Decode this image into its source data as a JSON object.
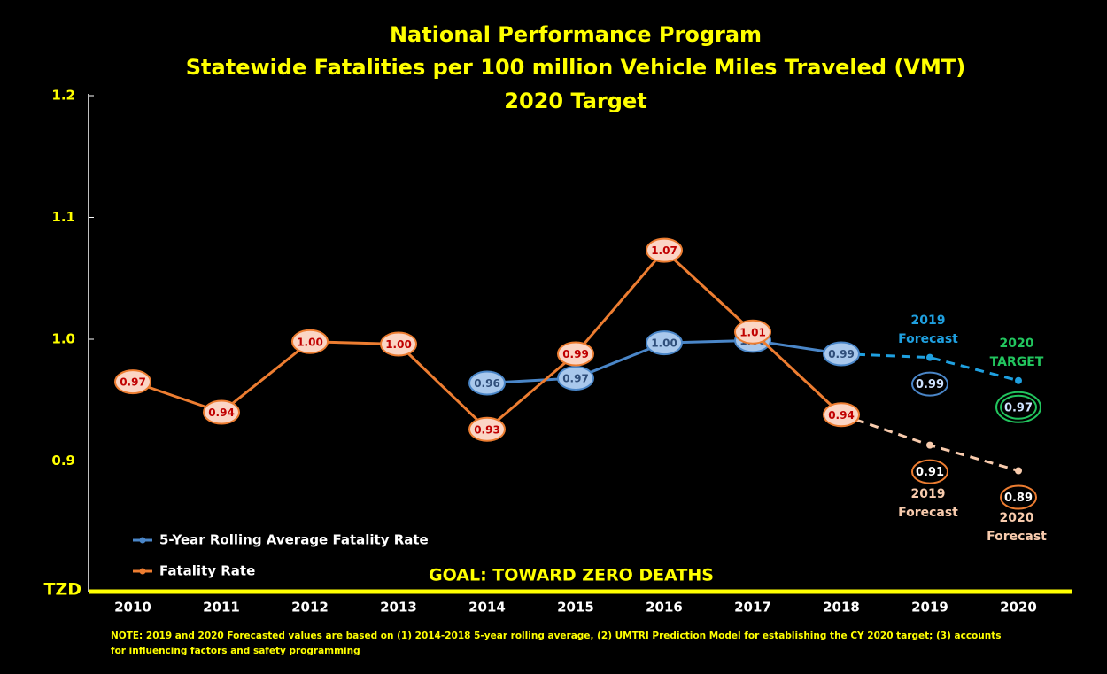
{
  "chart_data": {
    "type": "line",
    "title": [
      "National Performance Program",
      "Statewide Fatalities per 100 million Vehicle Miles Traveled (VMT)",
      "2020 Target"
    ],
    "categories": [
      "2010",
      "2011",
      "2012",
      "2013",
      "2014",
      "2015",
      "2016",
      "2017",
      "2018",
      "2019",
      "2020"
    ],
    "ylim": [
      0.8,
      1.2
    ],
    "yticks": [
      {
        "value": 0.8,
        "label": "TZD"
      },
      0.9,
      {
        "value": 1,
        "label": "1.0"
      },
      1.1,
      1.2
    ],
    "forecast_from": 8,
    "series": [
      {
        "name": "5-Year Rolling Average Fatality Rate",
        "color": "#4a86c8",
        "forecast_color": "#1fa0e0",
        "label_fill": "#a9c8ec",
        "label_text": "#2f4e7a",
        "target_color": "#22c55e",
        "values": [
          null,
          null,
          null,
          null,
          0.964,
          0.968,
          0.997,
          0.999,
          0.988,
          0.985,
          0.966
        ],
        "value_labels": [
          null,
          null,
          null,
          null,
          "0.96",
          "0.97",
          "1.00",
          "1.00",
          "0.99",
          "0.99",
          "0.97"
        ]
      },
      {
        "name": "Fatality Rate",
        "color": "#ed7d31",
        "forecast_color": "#f8cbad",
        "label_fill": "#fbd5c5",
        "label_text": "#c00000",
        "values": [
          0.965,
          0.94,
          0.998,
          0.996,
          0.926,
          0.988,
          1.073,
          1.006,
          0.938,
          0.913,
          0.892
        ],
        "value_labels": [
          "0.97",
          "0.94",
          "1.00",
          "1.00",
          "0.93",
          "0.99",
          "1.07",
          "1.01",
          "0.94",
          "0.91",
          "0.89"
        ]
      }
    ],
    "annotations": [
      {
        "lines": [
          "2019",
          "Forecast"
        ],
        "color": "#1fa0e0"
      },
      {
        "lines": [
          "2020",
          "TARGET"
        ],
        "color": "#22c55e"
      },
      {
        "lines": [
          "2019",
          "Forecast"
        ],
        "color": "#f8cbad"
      },
      {
        "lines": [
          "2020",
          "Forecast"
        ],
        "color": "#f8cbad"
      }
    ],
    "goal": "GOAL:  TOWARD ZERO DEATHS",
    "note": [
      "NOTE:  2019 and 2020 Forecasted values are based on (1) 2014-2018  5-year rolling average, (2) UMTRI Prediction Model for establishing the CY 2020 target; (3) accounts",
      "for influencing factors and safety programming"
    ]
  }
}
